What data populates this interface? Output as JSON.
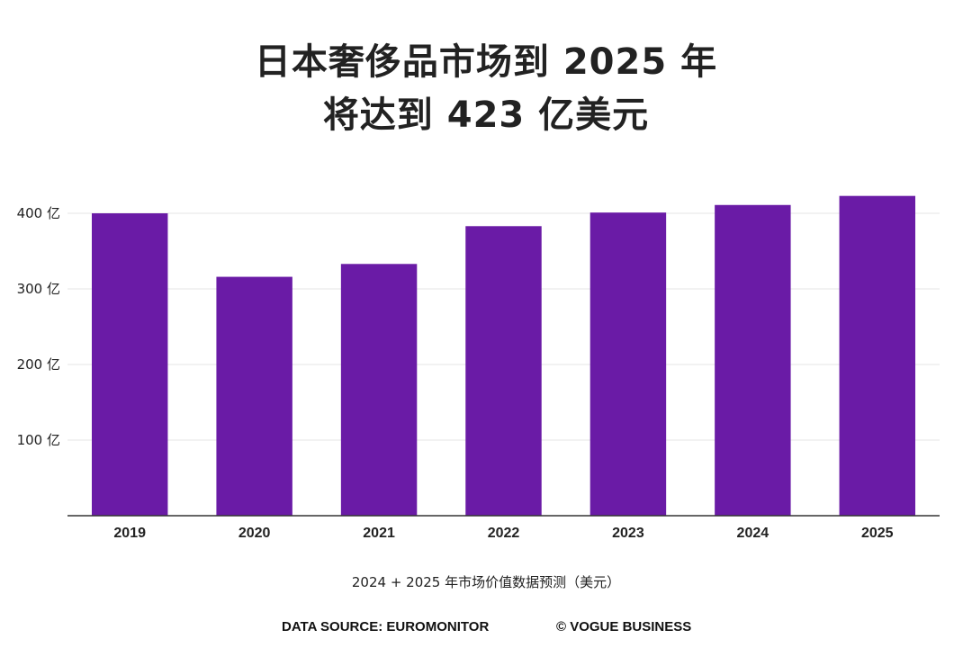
{
  "title": {
    "line1": "日本奢侈品市场到 2025 年",
    "line2": "将达到 423 亿美元"
  },
  "note": "2024 + 2025 年市场价值数据预测（美元）",
  "footer": {
    "source": "DATA SOURCE: EUROMONITOR",
    "credit": "© VOGUE BUSINESS"
  },
  "chart_data": {
    "type": "bar",
    "categories": [
      "2019",
      "2020",
      "2021",
      "2022",
      "2023",
      "2024",
      "2025"
    ],
    "values": [
      400,
      316,
      333,
      383,
      401,
      411,
      423
    ],
    "unit_note": "亿美元",
    "ylim": [
      0,
      450
    ],
    "yticks": [
      {
        "value": 100,
        "label": "100 亿"
      },
      {
        "value": 200,
        "label": "200 亿"
      },
      {
        "value": 300,
        "label": "300 亿"
      },
      {
        "value": 400,
        "label": "400 亿"
      }
    ],
    "grid": true,
    "bar_color": "#6a1ba6",
    "grid_color": "#e6e6e6",
    "axis_color": "#333333"
  }
}
